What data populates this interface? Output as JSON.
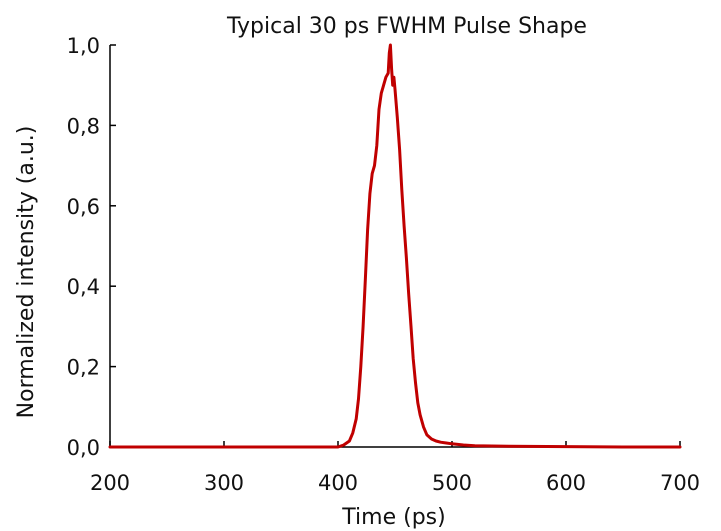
{
  "chart_data": {
    "type": "line",
    "title": "Typical 30 ps FWHM Pulse Shape",
    "xlabel": "Time (ps)",
    "ylabel": "Normalized intensity (a.u.)",
    "xlim": [
      200,
      700
    ],
    "ylim": [
      0,
      1
    ],
    "xticks": [
      200,
      300,
      400,
      500,
      600,
      700
    ],
    "xtick_labels": [
      "200",
      "300",
      "400",
      "500",
      "600",
      "700"
    ],
    "yticks": [
      0,
      0.2,
      0.4,
      0.6,
      0.8,
      1.0
    ],
    "ytick_labels": [
      "0,0",
      "0,2",
      "0,4",
      "0,6",
      "0,8",
      "1,0"
    ],
    "grid": false,
    "colors": {
      "series": "#c00000",
      "axis": "#000000"
    },
    "series": [
      {
        "x": [
          200,
          300,
          400,
          405,
          410,
          413,
          416,
          418,
          420,
          422,
          424,
          426,
          428,
          430,
          432,
          434,
          436,
          438,
          440,
          442,
          444,
          445,
          446,
          447,
          448,
          449,
          450,
          452,
          454,
          456,
          458,
          460,
          462,
          464,
          466,
          468,
          470,
          472,
          475,
          478,
          482,
          486,
          490,
          495,
          500,
          510,
          520,
          550,
          600,
          650,
          700
        ],
        "y": [
          0.0,
          0.0,
          0.0,
          0.005,
          0.015,
          0.035,
          0.07,
          0.12,
          0.2,
          0.3,
          0.42,
          0.54,
          0.63,
          0.68,
          0.7,
          0.75,
          0.84,
          0.88,
          0.9,
          0.92,
          0.93,
          0.98,
          1.0,
          0.94,
          0.9,
          0.92,
          0.89,
          0.82,
          0.74,
          0.64,
          0.55,
          0.47,
          0.38,
          0.3,
          0.22,
          0.16,
          0.11,
          0.08,
          0.05,
          0.03,
          0.02,
          0.015,
          0.012,
          0.01,
          0.008,
          0.005,
          0.003,
          0.002,
          0.001,
          0.0,
          0.0
        ]
      }
    ]
  }
}
